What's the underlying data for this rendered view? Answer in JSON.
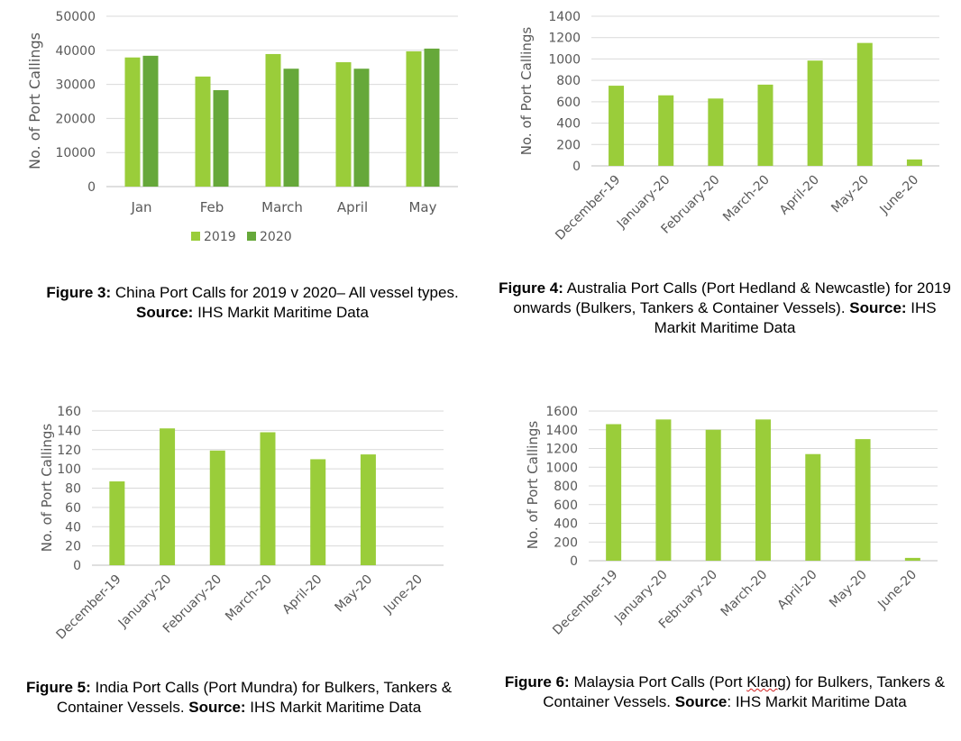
{
  "colors": {
    "light_green": "#9acd3a",
    "dark_green": "#66a83a",
    "grid": "#d9d9d9",
    "axis": "#bfbfbf",
    "text": "#595959"
  },
  "chart_data": [
    {
      "id": "fig3",
      "type": "bar",
      "categories": [
        "Jan",
        "Feb",
        "March",
        "April",
        "May"
      ],
      "series": [
        {
          "name": "2019",
          "values": [
            37900,
            32300,
            38900,
            36500,
            39700
          ],
          "color": "#9acd3a"
        },
        {
          "name": "2020",
          "values": [
            38400,
            28300,
            34600,
            34600,
            40500
          ],
          "color": "#66a83a"
        }
      ],
      "ylabel": "No. of Port Callings",
      "ylim": [
        0,
        50000
      ],
      "yticks": [
        "0",
        "10000",
        "20000",
        "30000",
        "40000",
        "50000"
      ],
      "grid": true,
      "legend": "bottom",
      "rotate_x_labels": false,
      "caption": {
        "label": "Figure 3:",
        "text": " China Port Calls for 2019 v 2020– All vessel types. ",
        "source_label": "Source:",
        "source_text": " IHS Markit Maritime Data"
      }
    },
    {
      "id": "fig4",
      "type": "bar",
      "categories": [
        "December-19",
        "January-20",
        "February-20",
        "March-20",
        "April-20",
        "May-20",
        "June-20"
      ],
      "series": [
        {
          "values": [
            750,
            660,
            630,
            760,
            985,
            1150,
            60
          ],
          "color": "#9acd3a"
        }
      ],
      "ylabel": "No. of Port Callings",
      "ylim": [
        0,
        1400
      ],
      "yticks": [
        "0",
        "200",
        "400",
        "600",
        "800",
        "1000",
        "1200",
        "1400"
      ],
      "grid": true,
      "rotate_x_labels": true,
      "caption": {
        "label": "Figure 4:",
        "text": " Australia Port Calls (Port Hedland & Newcastle) for 2019 onwards (Bulkers, Tankers & Container Vessels). ",
        "source_label": "Source:",
        "source_text": " IHS Markit Maritime Data"
      }
    },
    {
      "id": "fig5",
      "type": "bar",
      "categories": [
        "December-19",
        "January-20",
        "February-20",
        "March-20",
        "April-20",
        "May-20",
        "June-20"
      ],
      "series": [
        {
          "values": [
            87,
            142,
            119,
            138,
            110,
            115,
            0
          ],
          "color": "#9acd3a"
        }
      ],
      "ylabel": "No. of Port Callings",
      "ylim": [
        0,
        160
      ],
      "yticks": [
        "0",
        "20",
        "40",
        "60",
        "80",
        "100",
        "120",
        "140",
        "160"
      ],
      "grid": true,
      "rotate_x_labels": true,
      "caption": {
        "label": "Figure 5:",
        "text": " India Port Calls (Port Mundra) for Bulkers, Tankers & Container Vessels. ",
        "source_label": "Source:",
        "source_text": " IHS Markit Maritime Data"
      }
    },
    {
      "id": "fig6",
      "type": "bar",
      "categories": [
        "December-19",
        "January-20",
        "February-20",
        "March-20",
        "April-20",
        "May-20",
        "June-20"
      ],
      "series": [
        {
          "values": [
            1460,
            1510,
            1400,
            1510,
            1140,
            1300,
            30
          ],
          "color": "#9acd3a"
        }
      ],
      "ylabel": "No. of Port Callings",
      "ylim": [
        0,
        1600
      ],
      "yticks": [
        "0",
        "200",
        "400",
        "600",
        "800",
        "1000",
        "1200",
        "1400",
        "1600"
      ],
      "grid": true,
      "rotate_x_labels": true,
      "caption": {
        "label": "Figure 6:",
        "text": " Malaysia Port Calls (Port ",
        "squiggle_word": "Klang",
        "text_after": ") for Bulkers, Tankers & Container Vessels. ",
        "source_label": "Source",
        "source_text": ": IHS Markit Maritime Data"
      }
    }
  ]
}
